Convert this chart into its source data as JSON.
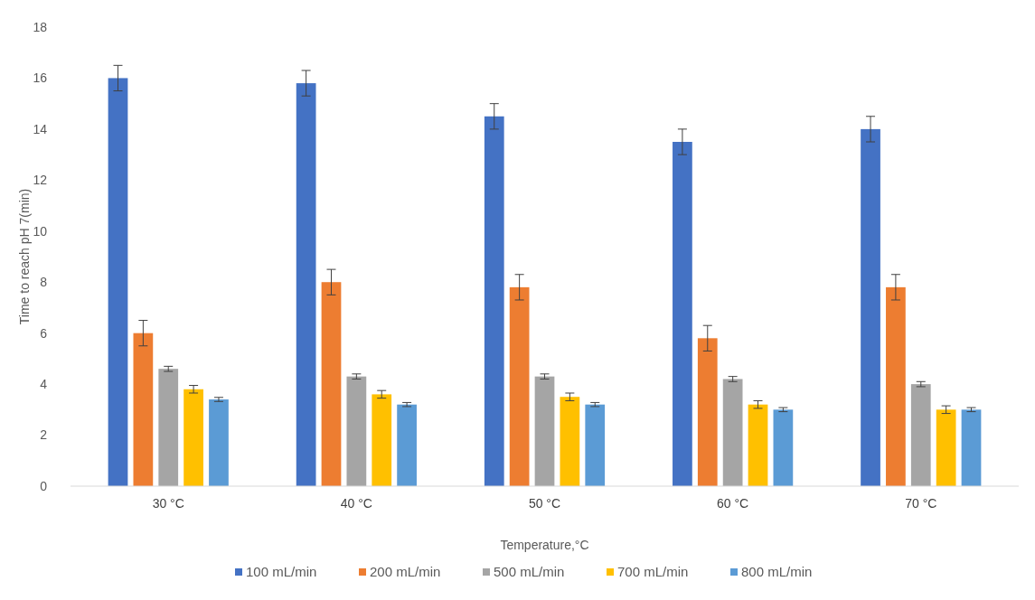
{
  "chart_data": {
    "type": "bar",
    "xlabel": "Temperature,°C",
    "ylabel": "Time to reach pH 7(min)",
    "categories": [
      "30 °C",
      "40 °C",
      "50 °C",
      "60 °C",
      "70 °C"
    ],
    "series": [
      {
        "name": "100 mL/min",
        "color": "#4472c4",
        "values": [
          16,
          15.8,
          14.5,
          13.5,
          14
        ],
        "errors": [
          0.5,
          0.5,
          0.5,
          0.5,
          0.5
        ]
      },
      {
        "name": "200 mL/min",
        "color": "#ed7d31",
        "values": [
          6,
          8,
          7.8,
          5.8,
          7.8
        ],
        "errors": [
          0.5,
          0.5,
          0.5,
          0.5,
          0.5
        ]
      },
      {
        "name": "500 mL/min",
        "color": "#a5a5a5",
        "values": [
          4.6,
          4.3,
          4.3,
          4.2,
          4.0
        ],
        "errors": [
          0.1,
          0.1,
          0.1,
          0.1,
          0.1
        ]
      },
      {
        "name": "700 mL/min",
        "color": "#ffc000",
        "values": [
          3.8,
          3.6,
          3.5,
          3.2,
          3.0
        ],
        "errors": [
          0.15,
          0.15,
          0.15,
          0.15,
          0.15
        ]
      },
      {
        "name": "800 mL/min",
        "color": "#5b9bd5",
        "values": [
          3.4,
          3.2,
          3.2,
          3.0,
          3.0
        ],
        "errors": [
          0.08,
          0.08,
          0.08,
          0.08,
          0.08
        ]
      }
    ],
    "ylim": [
      0,
      18
    ],
    "yticks": [
      0,
      2,
      4,
      6,
      8,
      10,
      12,
      14,
      16,
      18
    ],
    "grid": false,
    "legend": "bottom"
  }
}
